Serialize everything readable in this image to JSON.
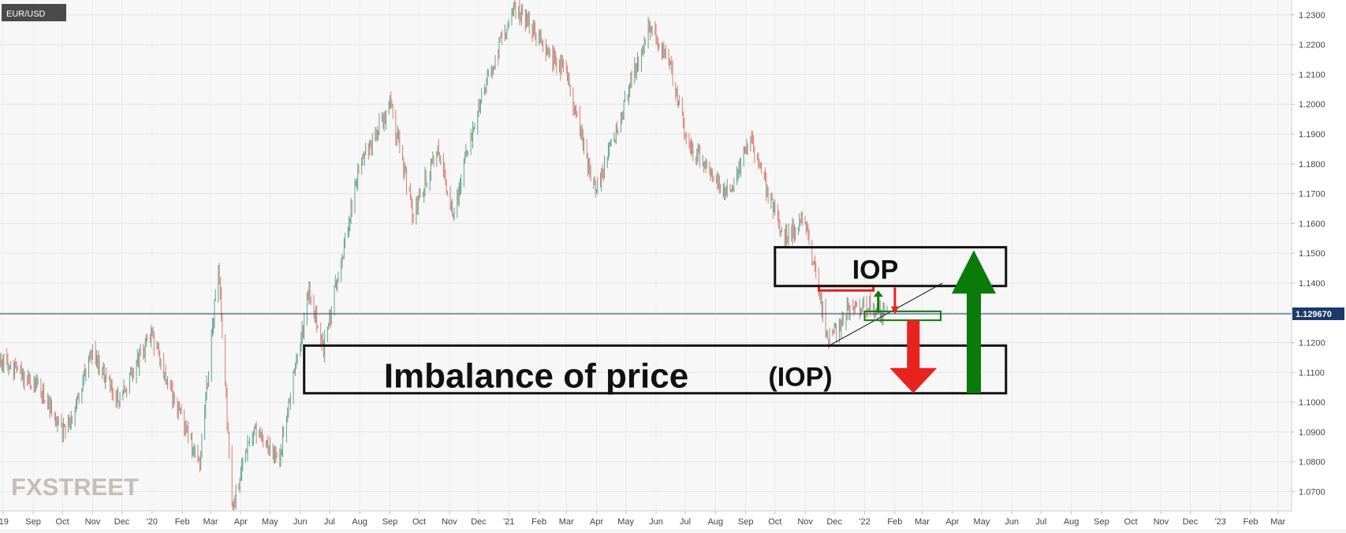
{
  "chart_data": {
    "type": "candlestick",
    "symbol": "EUR/USD",
    "current_price_label": "1.129670",
    "current_price": 1.12967,
    "ylim": [
      1.0635,
      1.235
    ],
    "yticks": [
      "1.2300",
      "1.2200",
      "1.2100",
      "1.2000",
      "1.1900",
      "1.1800",
      "1.1700",
      "1.1600",
      "1.1500",
      "1.1400",
      "1.1300",
      "1.1200",
      "1.1100",
      "1.1000",
      "1.0900",
      "1.0800",
      "1.0700"
    ],
    "xticks": [
      "'19",
      "Sep",
      "Oct",
      "Nov",
      "Dec",
      "'20",
      "Feb",
      "Mar",
      "Apr",
      "May",
      "Jun",
      "Jul",
      "Aug",
      "Sep",
      "Oct",
      "Nov",
      "Dec",
      "'21",
      "Feb",
      "Mar",
      "Apr",
      "May",
      "Jun",
      "Jul",
      "Aug",
      "Sep",
      "Oct",
      "Nov",
      "Dec",
      "'22",
      "Feb",
      "Mar",
      "Apr",
      "May",
      "Jun",
      "Jul",
      "Aug",
      "Sep",
      "Oct",
      "Nov",
      "Dec",
      "'23",
      "Feb",
      "Mar"
    ],
    "price_path": [
      {
        "date": "2019-07-29",
        "close": 1.114
      },
      {
        "date": "2019-08-25",
        "close": 1.108
      },
      {
        "date": "2019-09-15",
        "close": 1.101
      },
      {
        "date": "2019-10-01",
        "close": 1.09
      },
      {
        "date": "2019-10-15",
        "close": 1.099
      },
      {
        "date": "2019-11-01",
        "close": 1.117
      },
      {
        "date": "2019-11-28",
        "close": 1.1
      },
      {
        "date": "2019-12-31",
        "close": 1.122
      },
      {
        "date": "2020-02-19",
        "close": 1.078
      },
      {
        "date": "2020-03-09",
        "close": 1.148
      },
      {
        "date": "2020-03-23",
        "close": 1.065
      },
      {
        "date": "2020-04-15",
        "close": 1.092
      },
      {
        "date": "2020-05-10",
        "close": 1.08
      },
      {
        "date": "2020-06-10",
        "close": 1.137
      },
      {
        "date": "2020-06-25",
        "close": 1.118
      },
      {
        "date": "2020-08-01",
        "close": 1.18
      },
      {
        "date": "2020-09-01",
        "close": 1.2
      },
      {
        "date": "2020-09-25",
        "close": 1.163
      },
      {
        "date": "2020-10-20",
        "close": 1.185
      },
      {
        "date": "2020-11-04",
        "close": 1.162
      },
      {
        "date": "2020-12-01",
        "close": 1.2
      },
      {
        "date": "2021-01-06",
        "close": 1.233
      },
      {
        "date": "2021-03-01",
        "close": 1.21
      },
      {
        "date": "2021-03-31",
        "close": 1.17
      },
      {
        "date": "2021-05-25",
        "close": 1.226
      },
      {
        "date": "2021-06-15",
        "close": 1.213
      },
      {
        "date": "2021-07-05",
        "close": 1.185
      },
      {
        "date": "2021-08-15",
        "close": 1.17
      },
      {
        "date": "2021-09-05",
        "close": 1.188
      },
      {
        "date": "2021-10-10",
        "close": 1.155
      },
      {
        "date": "2021-11-01",
        "close": 1.161
      },
      {
        "date": "2021-11-25",
        "close": 1.12
      },
      {
        "date": "2021-12-15",
        "close": 1.131
      },
      {
        "date": "2022-01-02",
        "close": 1.133
      },
      {
        "date": "2022-01-14",
        "close": 1.13
      },
      {
        "date": "2022-01-24",
        "close": 1.1297
      }
    ],
    "annotations": {
      "iop_top_label": "IOP",
      "iop_bottom_label": "Imbalance of price",
      "iop_bottom_label_suffix": "(IOP)",
      "iop_top_zone": {
        "from": "2021-10-01",
        "to": "2022-05-26",
        "low": 1.139,
        "high": 1.152
      },
      "iop_bottom_zone": {
        "from": "2020-06-05",
        "to": "2022-05-26",
        "low": 1.103,
        "high": 1.119
      },
      "red_zone": {
        "from": "2021-11-15",
        "to": "2022-01-10",
        "low": 1.1375,
        "high": 1.139
      },
      "green_zone": {
        "from": "2022-01-01",
        "to": "2022-03-20",
        "low": 1.1275,
        "high": 1.1305
      },
      "trendline": {
        "from": {
          "date": "2021-11-24",
          "price": 1.1187
        },
        "to": {
          "date": "2022-03-22",
          "price": 1.14
        }
      },
      "small_green_arrow": {
        "date": "2022-01-15",
        "from": 1.13,
        "to": 1.1375,
        "direction": "up"
      },
      "small_red_arrow": {
        "date": "2022-02-01",
        "from": 1.1385,
        "to": 1.1295,
        "direction": "down"
      },
      "big_red_arrow": {
        "date": "2022-02-20",
        "from": 1.1275,
        "to": 1.103,
        "direction": "down"
      },
      "big_green_arrow": {
        "date": "2022-04-23",
        "from": 1.103,
        "to": 1.151,
        "direction": "up"
      }
    },
    "colors": {
      "up": "#5aa58a",
      "down": "#e07a70",
      "price_line": "#1a3a6b",
      "price_badge": "#1a3a6b",
      "iop_red": "#e8231e",
      "iop_green": "#0a7a0a"
    }
  },
  "watermark": "FXSTREET"
}
